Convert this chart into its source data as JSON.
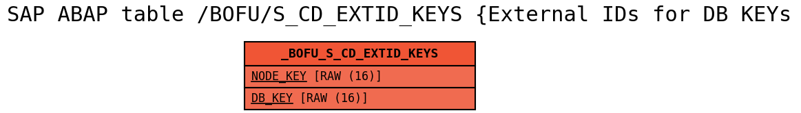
{
  "title": "SAP ABAP table /BOFU/S_CD_EXTID_KEYS {External IDs for DB KEYs (Keys part)}",
  "title_fontsize": 22,
  "title_color": "#000000",
  "table_name": "_BOFU_S_CD_EXTID_KEYS",
  "fields": [
    "NODE_KEY [RAW (16)]",
    "DB_KEY [RAW (16)]"
  ],
  "key_parts": [
    "NODE_KEY",
    "DB_KEY"
  ],
  "header_bg": "#f05535",
  "row_bg": "#f06b50",
  "border_color": "#000000",
  "text_color": "#000000",
  "fig_width": 11.63,
  "fig_height": 1.65,
  "dpi": 100
}
